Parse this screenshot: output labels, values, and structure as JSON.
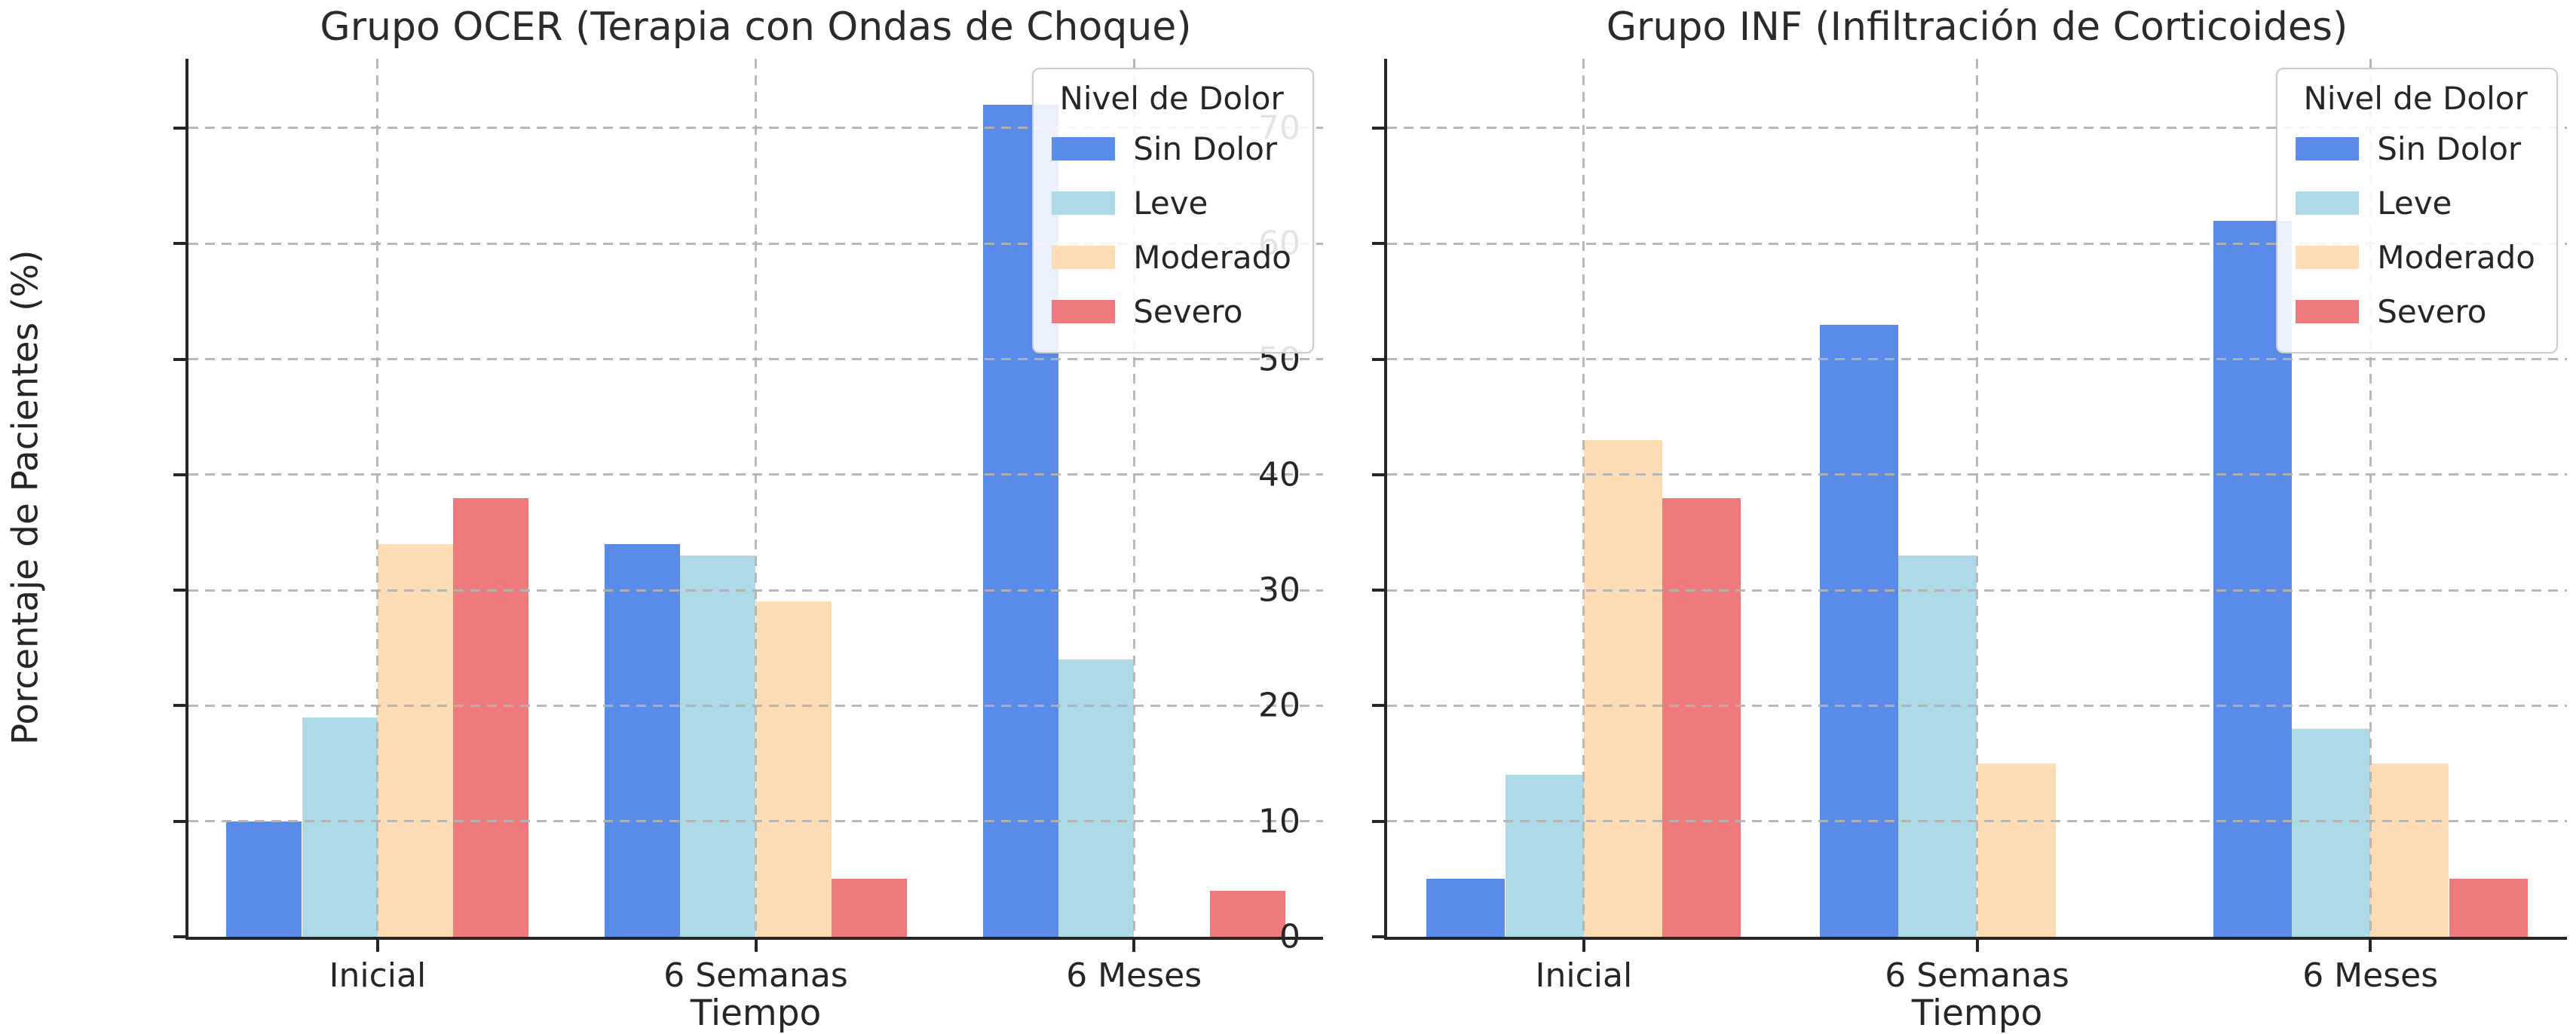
{
  "figure": {
    "background": "#ffffff"
  },
  "palette": {
    "spine": "#262626",
    "grid": "#b2b2b2",
    "text": "#262626",
    "legend_border": "#cccccc"
  },
  "legend": {
    "title": "Nivel de Dolor",
    "entries": [
      {
        "label": "Sin Dolor",
        "color": "#5b8be9"
      },
      {
        "label": "Leve",
        "color": "#aed9e6"
      },
      {
        "label": "Moderado",
        "color": "#fcdcb4"
      },
      {
        "label": "Severo",
        "color": "#ee7a7e"
      }
    ]
  },
  "chart_data": [
    {
      "type": "bar",
      "title": "Grupo OCER (Terapia con Ondas de Choque)",
      "xlabel": "Tiempo",
      "ylabel": "Porcentaje de Pacientes (%)",
      "categories": [
        "Inicial",
        "6 Semanas",
        "6 Meses"
      ],
      "series": [
        {
          "name": "Sin Dolor",
          "color": "#5b8be9",
          "values": [
            10,
            34,
            72
          ]
        },
        {
          "name": "Leve",
          "color": "#aed9e6",
          "values": [
            19,
            33,
            24
          ]
        },
        {
          "name": "Moderado",
          "color": "#fcdcb4",
          "values": [
            34,
            29,
            0
          ]
        },
        {
          "name": "Severo",
          "color": "#ee7a7e",
          "values": [
            38,
            5,
            4
          ]
        }
      ],
      "ylim": [
        0,
        76
      ],
      "yticks": [
        0,
        10,
        20,
        30,
        40,
        50,
        60,
        70
      ],
      "show_ytick_labels": true,
      "grid": true,
      "grid_above_bars": true,
      "legend_title": "Nivel de Dolor",
      "legend_position": "upper right"
    },
    {
      "type": "bar",
      "title": "Grupo INF (Infiltración de Corticoides)",
      "xlabel": "Tiempo",
      "ylabel": "",
      "categories": [
        "Inicial",
        "6 Semanas",
        "6 Meses"
      ],
      "series": [
        {
          "name": "Sin Dolor",
          "color": "#5b8be9",
          "values": [
            5,
            53,
            62
          ]
        },
        {
          "name": "Leve",
          "color": "#aed9e6",
          "values": [
            14,
            33,
            18
          ]
        },
        {
          "name": "Moderado",
          "color": "#fcdcb4",
          "values": [
            43,
            15,
            15
          ]
        },
        {
          "name": "Severo",
          "color": "#ee7a7e",
          "values": [
            38,
            0,
            5
          ]
        }
      ],
      "ylim": [
        0,
        76
      ],
      "yticks": [
        0,
        10,
        20,
        30,
        40,
        50,
        60,
        70
      ],
      "show_ytick_labels": false,
      "grid": true,
      "grid_above_bars": true,
      "legend_title": "Nivel de Dolor",
      "legend_position": "upper right"
    }
  ]
}
